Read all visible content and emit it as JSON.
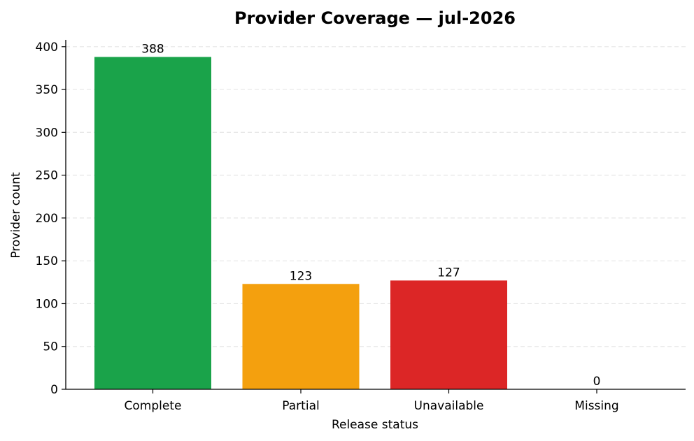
{
  "chart_data": {
    "type": "bar",
    "title": "Provider Coverage — jul-2026",
    "xlabel": "Release status",
    "ylabel": "Provider count",
    "categories": [
      "Complete",
      "Partial",
      "Unavailable",
      "Missing"
    ],
    "values": [
      388,
      123,
      127,
      0
    ],
    "data_labels": [
      "388",
      "123",
      "127",
      "0"
    ],
    "colors": [
      "#1aa34a",
      "#f4a00e",
      "#dc2626",
      "#9ca3af"
    ],
    "ylim": [
      0,
      408
    ],
    "yticks": [
      0,
      50,
      100,
      150,
      200,
      250,
      300,
      350,
      400
    ],
    "grid": "y-dashed",
    "legend": "none"
  }
}
